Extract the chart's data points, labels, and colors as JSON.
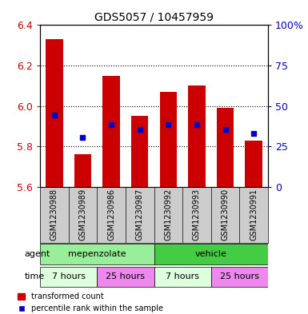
{
  "title": "GDS5057 / 10457959",
  "samples": [
    "GSM1230988",
    "GSM1230989",
    "GSM1230986",
    "GSM1230987",
    "GSM1230992",
    "GSM1230993",
    "GSM1230990",
    "GSM1230991"
  ],
  "bar_bottom": 5.6,
  "bar_tops": [
    6.33,
    5.76,
    6.15,
    5.95,
    6.07,
    6.1,
    5.99,
    5.83
  ],
  "blue_values": [
    5.955,
    5.845,
    5.91,
    5.885,
    5.91,
    5.91,
    5.885,
    5.865
  ],
  "ylim": [
    5.6,
    6.4
  ],
  "yticks": [
    5.6,
    5.8,
    6.0,
    6.2,
    6.4
  ],
  "right_yticks": [
    0,
    25,
    50,
    75,
    100
  ],
  "right_ylabels": [
    "0",
    "25",
    "50",
    "75",
    "100%"
  ],
  "bar_color": "#cc0000",
  "blue_color": "#0000cc",
  "grid_color": "#000000",
  "agent_spans": [
    [
      0,
      3,
      "mepenzolate",
      "#99ee99"
    ],
    [
      4,
      7,
      "vehicle",
      "#44cc44"
    ]
  ],
  "time_spans": [
    [
      0,
      1,
      "7 hours",
      "#ddffdd"
    ],
    [
      2,
      3,
      "25 hours",
      "#ee88ee"
    ],
    [
      4,
      5,
      "7 hours",
      "#ddffdd"
    ],
    [
      6,
      7,
      "25 hours",
      "#ee88ee"
    ]
  ],
  "legend_items": [
    "transformed count",
    "percentile rank within the sample"
  ],
  "axis_label_color_left": "#cc0000",
  "axis_label_color_right": "#0000cc",
  "bg_color": "#ffffff",
  "sample_bg": "#cccccc",
  "bar_width": 0.6
}
